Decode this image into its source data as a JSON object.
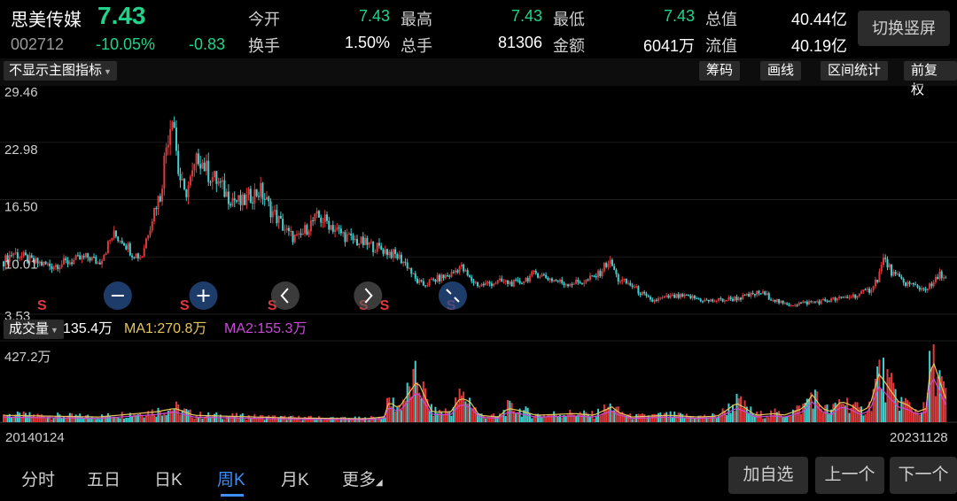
{
  "header": {
    "stock_name": "思美传媒",
    "price": "7.43",
    "code": "002712",
    "change_pct": "-10.05%",
    "change_amt": "-0.83",
    "switch_label": "切换竖屏",
    "quotes": [
      {
        "label": "今开",
        "value": "7.43",
        "color": "#1fd38a"
      },
      {
        "label": "最高",
        "value": "7.43",
        "color": "#1fd38a"
      },
      {
        "label": "最低",
        "value": "7.43",
        "color": "#1fd38a"
      },
      {
        "label": "总值",
        "value": "40.44亿",
        "color": "#ffffff"
      },
      {
        "label": "换手",
        "value": "1.50%",
        "color": "#ffffff"
      },
      {
        "label": "总手",
        "value": "81306",
        "color": "#ffffff"
      },
      {
        "label": "金额",
        "value": "6041万",
        "color": "#ffffff"
      },
      {
        "label": "流值",
        "value": "40.19亿",
        "color": "#ffffff"
      }
    ]
  },
  "toolbar": {
    "indicator_label": "不显示主图指标",
    "chip_label": "筹码",
    "draw_label": "画线",
    "range_label": "区间统计",
    "fq_label": "前复权"
  },
  "volume_bar": {
    "label": "成交量",
    "current": "135.4万",
    "ma1": "MA1:270.8万",
    "ma2": "MA2:155.3万",
    "max_label": "427.2万"
  },
  "dates": {
    "start": "20140124",
    "end": "20231128"
  },
  "tabs": [
    "分时",
    "五日",
    "日K",
    "周K",
    "月K",
    "更多"
  ],
  "bottom_buttons": {
    "add": "加自选",
    "prev": "上一个",
    "next": "下一个"
  },
  "chart_data": {
    "type": "candlestick",
    "period": "weekly",
    "date_range": [
      "20140124",
      "20231128"
    ],
    "y_ticks": [
      "29.46",
      "22.98",
      "16.50",
      "10.01",
      "3.53"
    ],
    "ylim": [
      3.53,
      29.46
    ],
    "colors": {
      "up": "#e0393b",
      "down": "#3fd1d1",
      "ma1": "#e6c65c",
      "ma2": "#c84ad6"
    },
    "price_path": [
      [
        0,
        9.5
      ],
      [
        0.01,
        10.5
      ],
      [
        0.03,
        9.5
      ],
      [
        0.05,
        9.0
      ],
      [
        0.07,
        9.5
      ],
      [
        0.09,
        10.0
      ],
      [
        0.1,
        9.3
      ],
      [
        0.115,
        12.5
      ],
      [
        0.125,
        12.0
      ],
      [
        0.135,
        10.5
      ],
      [
        0.145,
        10.0
      ],
      [
        0.152,
        13.0
      ],
      [
        0.16,
        16.0
      ],
      [
        0.165,
        17.0
      ],
      [
        0.17,
        22.0
      ],
      [
        0.175,
        25.0
      ],
      [
        0.178,
        27.0
      ],
      [
        0.183,
        20.0
      ],
      [
        0.19,
        17.0
      ],
      [
        0.198,
        19.0
      ],
      [
        0.205,
        21.5
      ],
      [
        0.215,
        19.5
      ],
      [
        0.225,
        18.5
      ],
      [
        0.235,
        17.0
      ],
      [
        0.25,
        16.0
      ],
      [
        0.26,
        17.0
      ],
      [
        0.27,
        17.5
      ],
      [
        0.28,
        15.5
      ],
      [
        0.29,
        14.0
      ],
      [
        0.3,
        12.5
      ],
      [
        0.31,
        12.0
      ],
      [
        0.32,
        13.5
      ],
      [
        0.33,
        14.5
      ],
      [
        0.34,
        14.0
      ],
      [
        0.35,
        13.0
      ],
      [
        0.365,
        12.0
      ],
      [
        0.38,
        11.5
      ],
      [
        0.4,
        10.8
      ],
      [
        0.415,
        10.0
      ],
      [
        0.425,
        9.0
      ],
      [
        0.432,
        7.5
      ],
      [
        0.44,
        6.8
      ],
      [
        0.455,
        7.5
      ],
      [
        0.47,
        8.0
      ],
      [
        0.48,
        9.0
      ],
      [
        0.49,
        7.5
      ],
      [
        0.5,
        6.8
      ],
      [
        0.52,
        7.2
      ],
      [
        0.54,
        7.0
      ],
      [
        0.56,
        8.2
      ],
      [
        0.575,
        7.5
      ],
      [
        0.59,
        7.0
      ],
      [
        0.61,
        7.2
      ],
      [
        0.625,
        8.0
      ],
      [
        0.635,
        9.5
      ],
      [
        0.64,
        9.0
      ],
      [
        0.645,
        7.5
      ],
      [
        0.66,
        6.8
      ],
      [
        0.68,
        5.0
      ],
      [
        0.7,
        5.5
      ],
      [
        0.72,
        5.5
      ],
      [
        0.74,
        5.0
      ],
      [
        0.76,
        5.2
      ],
      [
        0.78,
        5.5
      ],
      [
        0.795,
        6.0
      ],
      [
        0.81,
        5.2
      ],
      [
        0.82,
        4.6
      ],
      [
        0.84,
        4.8
      ],
      [
        0.86,
        5.0
      ],
      [
        0.88,
        5.3
      ],
      [
        0.9,
        5.8
      ],
      [
        0.91,
        6.3
      ],
      [
        0.918,
        7.5
      ],
      [
        0.925,
        9.8
      ],
      [
        0.935,
        8.0
      ],
      [
        0.945,
        7.2
      ],
      [
        0.955,
        6.8
      ],
      [
        0.965,
        6.4
      ],
      [
        0.975,
        6.7
      ],
      [
        0.985,
        8.2
      ],
      [
        0.99,
        7.43
      ]
    ],
    "signals": [
      {
        "kind": "S",
        "at": 0.04
      },
      {
        "kind": "minus",
        "at": 0.12
      },
      {
        "kind": "S",
        "at": 0.19
      },
      {
        "kind": "plus",
        "at": 0.21
      },
      {
        "kind": "S",
        "at": 0.282
      },
      {
        "kind": "back",
        "at": 0.296
      },
      {
        "kind": "S",
        "at": 0.378
      },
      {
        "kind": "forward",
        "at": 0.383
      },
      {
        "kind": "S",
        "at": 0.4
      },
      {
        "kind": "S",
        "at": 0.47
      },
      {
        "kind": "shrink",
        "at": 0.472
      }
    ],
    "volume_ylim": [
      0,
      427.2
    ],
    "volume_unit": "万",
    "volume_path": [
      [
        0,
        40
      ],
      [
        0.1,
        30
      ],
      [
        0.16,
        60
      ],
      [
        0.18,
        80
      ],
      [
        0.2,
        40
      ],
      [
        0.3,
        25
      ],
      [
        0.38,
        20
      ],
      [
        0.4,
        30
      ],
      [
        0.405,
        120
      ],
      [
        0.415,
        80
      ],
      [
        0.435,
        240
      ],
      [
        0.44,
        180
      ],
      [
        0.45,
        60
      ],
      [
        0.47,
        60
      ],
      [
        0.48,
        140
      ],
      [
        0.49,
        120
      ],
      [
        0.5,
        40
      ],
      [
        0.52,
        30
      ],
      [
        0.53,
        80
      ],
      [
        0.54,
        70
      ],
      [
        0.56,
        40
      ],
      [
        0.6,
        50
      ],
      [
        0.62,
        40
      ],
      [
        0.64,
        90
      ],
      [
        0.645,
        60
      ],
      [
        0.66,
        30
      ],
      [
        0.7,
        40
      ],
      [
        0.73,
        30
      ],
      [
        0.75,
        35
      ],
      [
        0.76,
        70
      ],
      [
        0.77,
        110
      ],
      [
        0.78,
        80
      ],
      [
        0.79,
        40
      ],
      [
        0.81,
        50
      ],
      [
        0.82,
        40
      ],
      [
        0.83,
        60
      ],
      [
        0.84,
        80
      ],
      [
        0.85,
        160
      ],
      [
        0.86,
        80
      ],
      [
        0.87,
        60
      ],
      [
        0.88,
        120
      ],
      [
        0.89,
        100
      ],
      [
        0.9,
        60
      ],
      [
        0.91,
        90
      ],
      [
        0.92,
        280
      ],
      [
        0.93,
        200
      ],
      [
        0.94,
        120
      ],
      [
        0.95,
        100
      ],
      [
        0.96,
        60
      ],
      [
        0.97,
        80
      ],
      [
        0.975,
        380
      ],
      [
        0.98,
        300
      ],
      [
        0.99,
        135.4
      ]
    ]
  }
}
